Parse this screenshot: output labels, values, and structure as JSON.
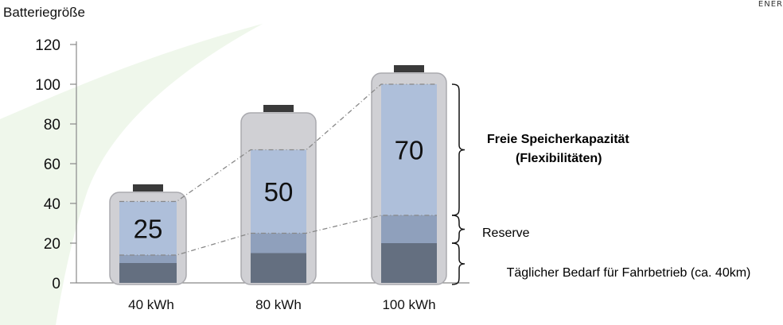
{
  "logo_text": "ENER",
  "colors": {
    "battery_body": "#d0d0d4",
    "battery_outline": "#aaaaaf",
    "battery_cap": "#3a3a3a",
    "flex_fill": "#aebfda",
    "reserve_fill": "#8fa0bc",
    "daily_fill": "#646f80",
    "axis": "#888888",
    "dash": "#888888",
    "swoosh": "#e6f2e0"
  },
  "annotations": {
    "flex_line1": "Freie Speicherkapazität",
    "flex_line2": "(Flexibilitäten)",
    "reserve": "Reserve",
    "daily": "Täglicher Bedarf für Fahrbetrieb (ca. 40km)"
  },
  "chart_data": {
    "type": "bar",
    "ylabel": "Batteriegröße",
    "ylim": [
      0,
      120
    ],
    "yticks": [
      0,
      20,
      40,
      60,
      80,
      100,
      120
    ],
    "categories": [
      "40 kWh",
      "80 kWh",
      "100 kWh"
    ],
    "capacity": [
      40,
      80,
      100
    ],
    "segments": {
      "daily": [
        10,
        15,
        20
      ],
      "reserve_top": [
        14,
        25,
        34
      ],
      "flex_top": [
        41,
        67,
        100
      ]
    },
    "value_labels": [
      "25",
      "50",
      "70"
    ]
  }
}
